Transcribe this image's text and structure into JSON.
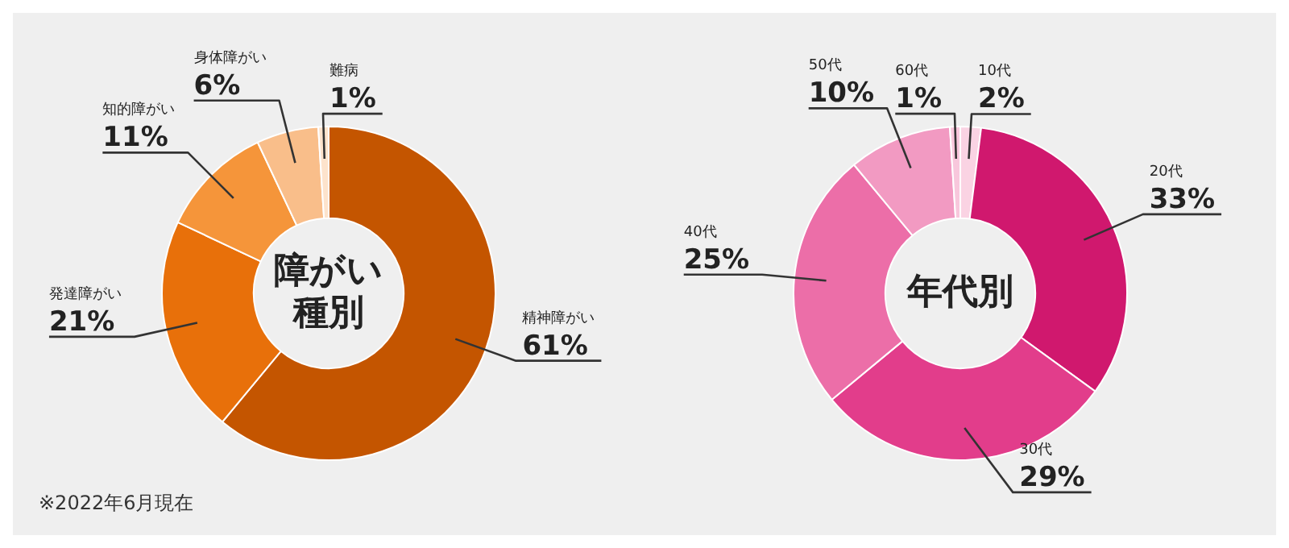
{
  "chart_data": [
    {
      "type": "donut",
      "title": "障がい種別",
      "categories": [
        "精神障がい",
        "発達障がい",
        "知的障がい",
        "身体障がい",
        "難病"
      ],
      "values": [
        61,
        21,
        11,
        6,
        1
      ],
      "value_labels": [
        "61%",
        "21%",
        "11%",
        "6%",
        "1%"
      ],
      "colors": [
        "#c45500",
        "#e8700a",
        "#f5953a",
        "#f9be8a",
        "#fde3cc"
      ],
      "legend": false,
      "annotations": [
        "※2022年6月現在"
      ]
    },
    {
      "type": "donut",
      "title": "年代別",
      "categories": [
        "10代",
        "20代",
        "30代",
        "40代",
        "50代",
        "60代"
      ],
      "values": [
        2,
        33,
        29,
        25,
        10,
        1
      ],
      "value_labels": [
        "2%",
        "33%",
        "29%",
        "25%",
        "10%",
        "1%"
      ],
      "colors": [
        "#fad3e3",
        "#d0186e",
        "#e23d8b",
        "#ec6ea8",
        "#f29ac2",
        "#f8c7dc"
      ],
      "legend": false
    }
  ]
}
